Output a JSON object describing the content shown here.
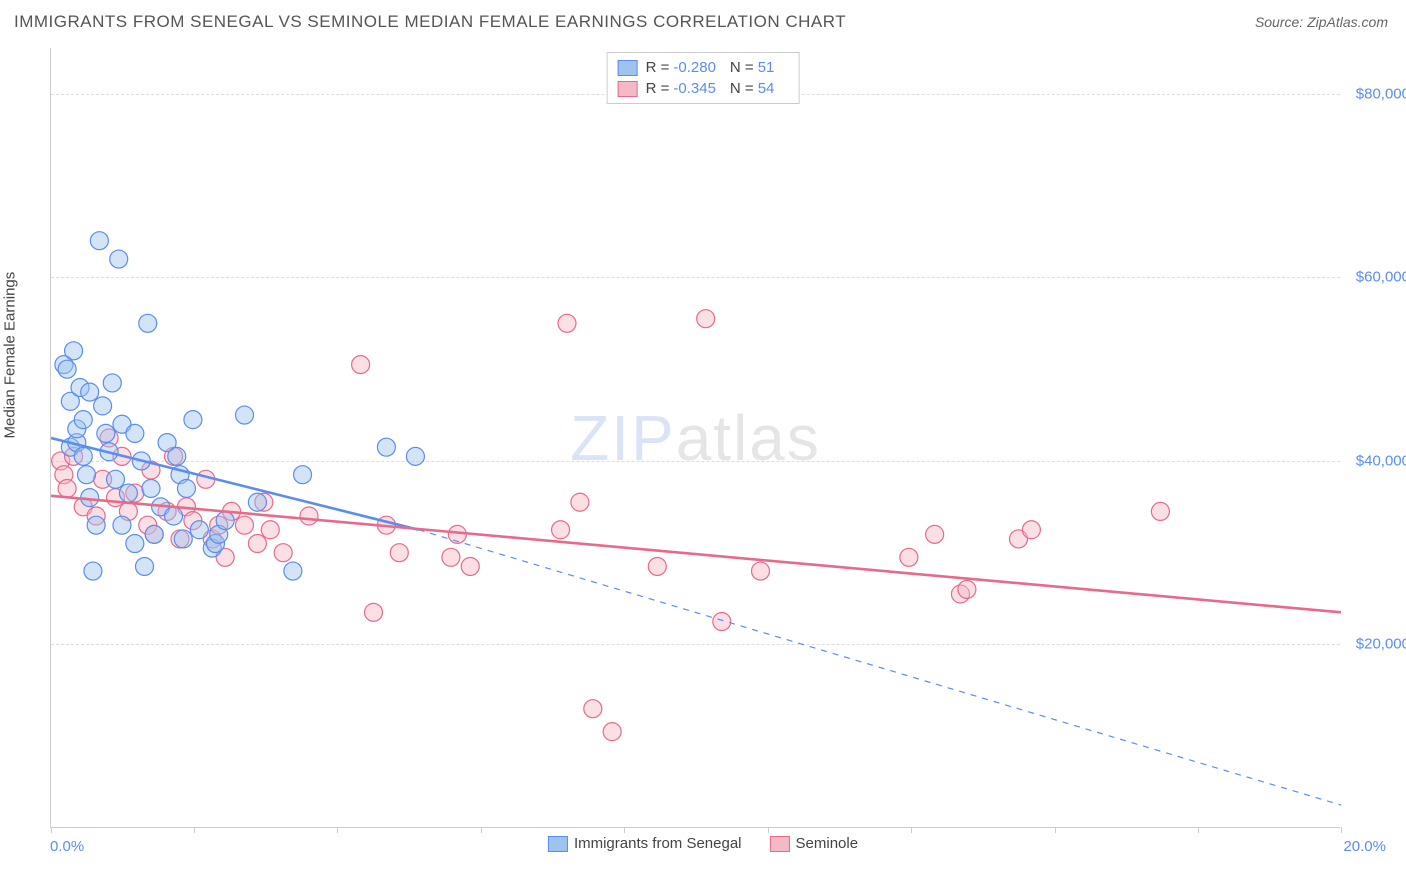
{
  "title": "IMMIGRANTS FROM SENEGAL VS SEMINOLE MEDIAN FEMALE EARNINGS CORRELATION CHART",
  "source": "Source: ZipAtlas.com",
  "watermark": {
    "part1": "ZIP",
    "part2": "atlas"
  },
  "y_axis_title": "Median Female Earnings",
  "chart": {
    "type": "scatter",
    "xlim": [
      0,
      20
    ],
    "ylim": [
      0,
      85000
    ],
    "x_tick_positions": [
      0,
      2.22,
      4.44,
      6.67,
      8.89,
      11.11,
      13.33,
      15.56,
      17.78,
      20
    ],
    "x_tick_labels": {
      "first": "0.0%",
      "last": "20.0%"
    },
    "y_gridlines": [
      20000,
      40000,
      60000,
      80000
    ],
    "y_tick_labels": [
      "$20,000",
      "$40,000",
      "$60,000",
      "$80,000"
    ],
    "background_color": "#ffffff",
    "grid_color": "#dddddd",
    "axis_color": "#cccccc",
    "tick_label_color": "#5b8def",
    "marker_radius": 9,
    "series": [
      {
        "id": "senegal",
        "label": "Immigrants from Senegal",
        "fill": "#9ec3ee",
        "stroke": "#5b8def",
        "r_value": "-0.280",
        "n_value": "51",
        "regression": {
          "solid": {
            "x1": 0,
            "y1": 42500,
            "x2": 5.7,
            "y2": 32500,
            "width": 2.6
          },
          "dashed": {
            "x1": 5.7,
            "y1": 32500,
            "x2": 20,
            "y2": 2500,
            "width": 1.2,
            "dash": "6,6"
          }
        },
        "points": [
          [
            0.2,
            50500
          ],
          [
            0.25,
            50000
          ],
          [
            0.3,
            41500
          ],
          [
            0.3,
            46500
          ],
          [
            0.35,
            52000
          ],
          [
            0.4,
            42000
          ],
          [
            0.4,
            43500
          ],
          [
            0.45,
            48000
          ],
          [
            0.5,
            44500
          ],
          [
            0.5,
            40500
          ],
          [
            0.55,
            38500
          ],
          [
            0.6,
            47500
          ],
          [
            0.6,
            36000
          ],
          [
            0.65,
            28000
          ],
          [
            0.7,
            33000
          ],
          [
            0.75,
            64000
          ],
          [
            0.8,
            46000
          ],
          [
            0.85,
            43000
          ],
          [
            0.9,
            41000
          ],
          [
            0.95,
            48500
          ],
          [
            1.0,
            38000
          ],
          [
            1.05,
            62000
          ],
          [
            1.1,
            44000
          ],
          [
            1.1,
            33000
          ],
          [
            1.2,
            36500
          ],
          [
            1.3,
            31000
          ],
          [
            1.3,
            43000
          ],
          [
            1.4,
            40000
          ],
          [
            1.45,
            28500
          ],
          [
            1.5,
            55000
          ],
          [
            1.55,
            37000
          ],
          [
            1.6,
            32000
          ],
          [
            1.7,
            35000
          ],
          [
            1.8,
            42000
          ],
          [
            1.9,
            34000
          ],
          [
            1.95,
            40500
          ],
          [
            2.0,
            38500
          ],
          [
            2.05,
            31500
          ],
          [
            2.1,
            37000
          ],
          [
            2.2,
            44500
          ],
          [
            2.3,
            32500
          ],
          [
            2.5,
            30500
          ],
          [
            2.55,
            31000
          ],
          [
            2.6,
            32000
          ],
          [
            2.7,
            33500
          ],
          [
            3.0,
            45000
          ],
          [
            3.2,
            35500
          ],
          [
            3.75,
            28000
          ],
          [
            3.9,
            38500
          ],
          [
            5.2,
            41500
          ],
          [
            5.65,
            40500
          ]
        ]
      },
      {
        "id": "seminole",
        "label": "Seminole",
        "fill": "#f5b8c5",
        "stroke": "#e86a8a",
        "r_value": "-0.345",
        "n_value": "54",
        "regression": {
          "solid": {
            "x1": 0,
            "y1": 36200,
            "x2": 20,
            "y2": 23500,
            "width": 2.6
          }
        },
        "points": [
          [
            0.15,
            40000
          ],
          [
            0.2,
            38500
          ],
          [
            0.25,
            37000
          ],
          [
            0.35,
            40500
          ],
          [
            0.5,
            35000
          ],
          [
            0.7,
            34000
          ],
          [
            0.8,
            38000
          ],
          [
            0.9,
            42500
          ],
          [
            1.0,
            36000
          ],
          [
            1.1,
            40500
          ],
          [
            1.2,
            34500
          ],
          [
            1.3,
            36500
          ],
          [
            1.5,
            33000
          ],
          [
            1.55,
            39000
          ],
          [
            1.6,
            32000
          ],
          [
            1.8,
            34500
          ],
          [
            1.9,
            40500
          ],
          [
            2.0,
            31500
          ],
          [
            2.1,
            35000
          ],
          [
            2.2,
            33500
          ],
          [
            2.4,
            38000
          ],
          [
            2.5,
            31500
          ],
          [
            2.6,
            33000
          ],
          [
            2.7,
            29500
          ],
          [
            2.8,
            34500
          ],
          [
            3.0,
            33000
          ],
          [
            3.2,
            31000
          ],
          [
            3.3,
            35500
          ],
          [
            3.4,
            32500
          ],
          [
            3.6,
            30000
          ],
          [
            4.0,
            34000
          ],
          [
            4.8,
            50500
          ],
          [
            5.0,
            23500
          ],
          [
            5.2,
            33000
          ],
          [
            5.4,
            30000
          ],
          [
            6.2,
            29500
          ],
          [
            6.3,
            32000
          ],
          [
            6.5,
            28500
          ],
          [
            7.9,
            32500
          ],
          [
            8.0,
            55000
          ],
          [
            8.2,
            35500
          ],
          [
            8.4,
            13000
          ],
          [
            8.7,
            10500
          ],
          [
            9.4,
            28500
          ],
          [
            10.15,
            55500
          ],
          [
            10.4,
            22500
          ],
          [
            11.0,
            28000
          ],
          [
            13.3,
            29500
          ],
          [
            13.7,
            32000
          ],
          [
            14.1,
            25500
          ],
          [
            14.2,
            26000
          ],
          [
            15.0,
            31500
          ],
          [
            15.2,
            32500
          ],
          [
            17.2,
            34500
          ]
        ]
      }
    ]
  }
}
